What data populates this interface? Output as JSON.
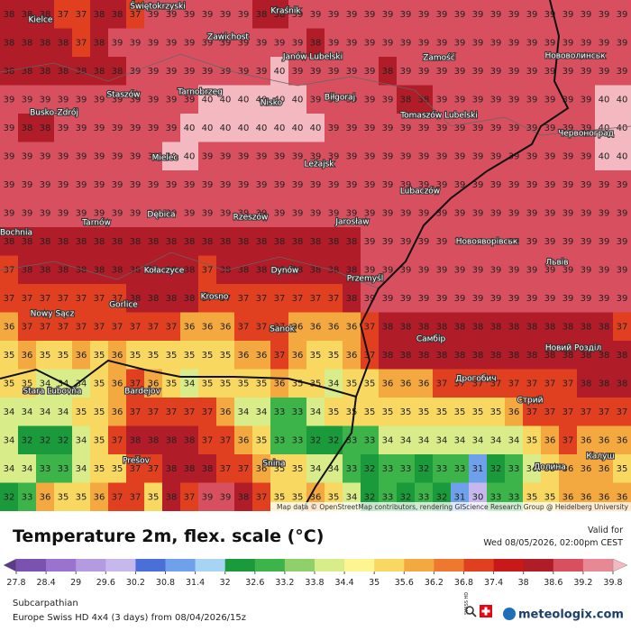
{
  "map": {
    "grid": [
      [
        38,
        38,
        38,
        37,
        37,
        38,
        38,
        37,
        39,
        39,
        39,
        39,
        39,
        39,
        38,
        38,
        39,
        39,
        39,
        39,
        39,
        39,
        39,
        39,
        39,
        39,
        39,
        39,
        39,
        39,
        39,
        39,
        39,
        39,
        39
      ],
      [
        38,
        38,
        38,
        38,
        37,
        38,
        39,
        39,
        39,
        39,
        39,
        39,
        39,
        39,
        39,
        39,
        39,
        38,
        39,
        39,
        39,
        39,
        39,
        39,
        39,
        39,
        39,
        39,
        39,
        39,
        39,
        39,
        39,
        39,
        39
      ],
      [
        38,
        38,
        38,
        38,
        38,
        38,
        38,
        39,
        39,
        39,
        39,
        39,
        39,
        39,
        39,
        40,
        39,
        39,
        39,
        39,
        39,
        38,
        39,
        39,
        39,
        39,
        39,
        39,
        39,
        39,
        39,
        39,
        39,
        39,
        39
      ],
      [
        39,
        39,
        39,
        39,
        39,
        39,
        39,
        39,
        39,
        39,
        39,
        40,
        40,
        40,
        40,
        40,
        40,
        39,
        39,
        39,
        39,
        39,
        38,
        38,
        39,
        39,
        39,
        39,
        39,
        39,
        39,
        39,
        39,
        40,
        40
      ],
      [
        39,
        38,
        38,
        39,
        39,
        39,
        39,
        39,
        39,
        39,
        40,
        40,
        40,
        40,
        40,
        40,
        40,
        40,
        39,
        39,
        39,
        39,
        39,
        39,
        39,
        39,
        39,
        39,
        39,
        39,
        39,
        39,
        39,
        40,
        40
      ],
      [
        39,
        39,
        39,
        39,
        39,
        39,
        39,
        39,
        39,
        40,
        40,
        39,
        39,
        39,
        39,
        39,
        39,
        39,
        39,
        39,
        39,
        39,
        39,
        39,
        39,
        39,
        39,
        39,
        39,
        39,
        39,
        39,
        39,
        40,
        40
      ],
      [
        39,
        39,
        39,
        39,
        39,
        39,
        39,
        39,
        39,
        39,
        39,
        39,
        39,
        39,
        39,
        39,
        39,
        39,
        39,
        39,
        39,
        39,
        39,
        39,
        39,
        39,
        39,
        39,
        39,
        39,
        39,
        39,
        39,
        39,
        39
      ],
      [
        39,
        39,
        39,
        39,
        39,
        39,
        39,
        39,
        39,
        39,
        39,
        39,
        39,
        39,
        39,
        39,
        39,
        39,
        39,
        39,
        39,
        39,
        39,
        39,
        39,
        39,
        39,
        39,
        39,
        39,
        39,
        39,
        39,
        39,
        39
      ],
      [
        38,
        38,
        38,
        38,
        38,
        38,
        38,
        38,
        38,
        38,
        38,
        38,
        38,
        38,
        38,
        38,
        38,
        38,
        38,
        38,
        39,
        39,
        39,
        39,
        39,
        39,
        39,
        39,
        39,
        39,
        39,
        39,
        39,
        39,
        39
      ],
      [
        37,
        38,
        38,
        38,
        38,
        38,
        38,
        38,
        38,
        38,
        38,
        37,
        38,
        38,
        38,
        38,
        38,
        38,
        38,
        38,
        39,
        39,
        39,
        39,
        39,
        39,
        39,
        39,
        39,
        39,
        39,
        39,
        39,
        39,
        39
      ],
      [
        37,
        37,
        37,
        37,
        37,
        37,
        37,
        38,
        38,
        38,
        38,
        37,
        37,
        37,
        37,
        37,
        37,
        37,
        37,
        38,
        39,
        39,
        39,
        39,
        39,
        39,
        39,
        39,
        39,
        39,
        39,
        39,
        39,
        39,
        39
      ],
      [
        36,
        37,
        37,
        37,
        37,
        37,
        37,
        37,
        37,
        37,
        36,
        36,
        36,
        37,
        37,
        37,
        36,
        36,
        36,
        36,
        37,
        38,
        38,
        38,
        38,
        38,
        38,
        38,
        38,
        38,
        38,
        38,
        38,
        38,
        37
      ],
      [
        35,
        36,
        35,
        35,
        36,
        35,
        36,
        35,
        35,
        35,
        35,
        35,
        35,
        36,
        36,
        37,
        36,
        35,
        35,
        36,
        37,
        38,
        38,
        38,
        38,
        38,
        38,
        38,
        38,
        38,
        38,
        38,
        38,
        38,
        38
      ],
      [
        35,
        35,
        34,
        34,
        34,
        35,
        36,
        37,
        36,
        35,
        34,
        35,
        35,
        35,
        35,
        36,
        35,
        35,
        34,
        35,
        35,
        36,
        36,
        36,
        37,
        37,
        37,
        37,
        37,
        37,
        37,
        37,
        38,
        38,
        38
      ],
      [
        34,
        34,
        34,
        34,
        35,
        35,
        36,
        37,
        37,
        37,
        37,
        37,
        36,
        34,
        34,
        33,
        33,
        34,
        35,
        35,
        35,
        35,
        35,
        35,
        35,
        35,
        35,
        35,
        36,
        37,
        37,
        37,
        37,
        37,
        37
      ],
      [
        34,
        32,
        32,
        32,
        34,
        35,
        37,
        38,
        38,
        38,
        38,
        37,
        37,
        36,
        35,
        33,
        33,
        32,
        32,
        33,
        33,
        34,
        34,
        34,
        34,
        34,
        34,
        34,
        34,
        35,
        36,
        37,
        36,
        36,
        36
      ],
      [
        34,
        34,
        33,
        33,
        34,
        35,
        35,
        37,
        37,
        38,
        38,
        38,
        37,
        37,
        36,
        35,
        35,
        34,
        34,
        33,
        32,
        33,
        33,
        32,
        33,
        33,
        31,
        32,
        33,
        34,
        35,
        36,
        36,
        36,
        35
      ],
      [
        32,
        33,
        36,
        35,
        35,
        36,
        37,
        37,
        35,
        38,
        37,
        39,
        39,
        38,
        37,
        35,
        35,
        36,
        35,
        34,
        32,
        33,
        32,
        33,
        32,
        31,
        30,
        33,
        33,
        35,
        35,
        36,
        36,
        36,
        36
      ]
    ],
    "places": [
      "Kielce",
      "Świętokrzyski",
      "Kraśnik",
      "Zawichost",
      "Janów Lubelski",
      "Zamość",
      "Нововолинськ",
      "Staszów",
      "Tarnobrzeg",
      "Nisko",
      "Biłgoraj",
      "Busko-Zdrój",
      "Tomaszów Lubelski",
      "Червоноград",
      "Mielec",
      "Leżajsk",
      "Lubaczów",
      "Tarnów",
      "Dębica",
      "Rzeszów",
      "Jarosław",
      "Bochnia",
      "Новояворівськ",
      "Львів",
      "Kołaczyce",
      "Dynów",
      "Przemyśl",
      "Krosno",
      "Nowy Sącz",
      "Gorlice",
      "Sanok",
      "Самбір",
      "Новий Розділ",
      "Stara Ľubovňa",
      "Bardejov",
      "Дрогобич",
      "Стрий",
      "Prešov",
      "Snina",
      "Калуш",
      "Долина"
    ],
    "attribution": "Map data © OpenStreetMap contributors, rendering GIScience Research Group @ Heidelberg University"
  },
  "legend": {
    "title": "Temperature 2m, flex. scale (°C)",
    "valid_label": "Valid for",
    "valid_time": "Wed 08/05/2026, 02:00pm CEST",
    "ticks": [
      27.8,
      28.4,
      29,
      29.6,
      30.2,
      30.8,
      31.4,
      32,
      32.6,
      33.2,
      33.8,
      34.4,
      35,
      35.6,
      36.2,
      36.8,
      37.4,
      38,
      38.6,
      39.2,
      39.8
    ],
    "colors": [
      "#5a3a8a",
      "#7a52b0",
      "#9a72d0",
      "#b49be0",
      "#c6b8ec",
      "#4a6fd8",
      "#6fa0ec",
      "#a8d4f4",
      "#1a9a3a",
      "#3cb44a",
      "#8fd06a",
      "#d8ec8a",
      "#fcf590",
      "#f8d860",
      "#f4a840",
      "#ee7830",
      "#e04020",
      "#c81818",
      "#b01c28",
      "#d85060",
      "#e88894",
      "#f4b8c0"
    ]
  },
  "footer": {
    "region": "Subcarpathian",
    "model": "Europe Swiss HD 4x4 (3 days) from 08/04/2026/15z",
    "badge": "SWISS HD",
    "brand": "meteologix.com"
  }
}
